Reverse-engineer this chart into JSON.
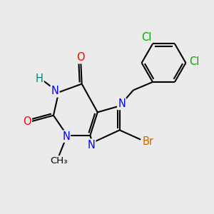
{
  "background_color": "#ebebeb",
  "atom_colors": {
    "N": "#0000ff",
    "O": "#ff0000",
    "Br": "#cc6600",
    "Cl": "#00aa00",
    "C": "#000000",
    "H": "#008080"
  },
  "bond_color": "#000000",
  "bond_width": 1.5,
  "font_size": 10.5
}
